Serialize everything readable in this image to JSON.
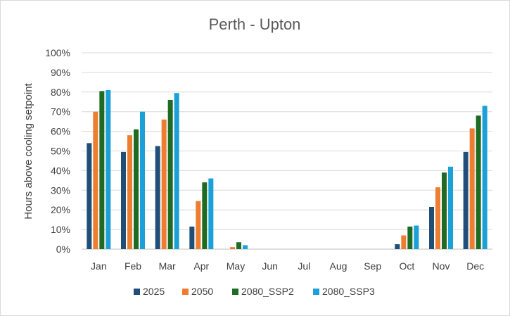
{
  "chart_data": {
    "type": "bar",
    "title": "Perth - Upton",
    "xlabel": "",
    "ylabel": "Hours above cooling setpoint",
    "ylim": [
      0,
      100
    ],
    "y_tick_labels": [
      "0%",
      "10%",
      "20%",
      "30%",
      "40%",
      "50%",
      "60%",
      "70%",
      "80%",
      "90%",
      "100%"
    ],
    "grid": true,
    "legend_position": "bottom",
    "categories": [
      "Jan",
      "Feb",
      "Mar",
      "Apr",
      "May",
      "Jun",
      "Jul",
      "Aug",
      "Sep",
      "Oct",
      "Nov",
      "Dec"
    ],
    "series": [
      {
        "name": "2025",
        "color": "#1f4e79",
        "values": [
          54,
          49.5,
          52.5,
          11.5,
          0,
          0,
          0,
          0,
          0,
          2.5,
          21.5,
          49.5
        ]
      },
      {
        "name": "2050",
        "color": "#ed7d31",
        "values": [
          70,
          58,
          66,
          24.5,
          1,
          0,
          0,
          0,
          0,
          7,
          31.5,
          61.5
        ]
      },
      {
        "name": "2080_SSP2",
        "color": "#1e6b24",
        "values": [
          80.5,
          61,
          76,
          34,
          3.5,
          0,
          0,
          0,
          0,
          11.5,
          39,
          68
        ]
      },
      {
        "name": "2080_SSP3",
        "color": "#1ca0d8",
        "values": [
          81,
          70,
          79.5,
          36,
          2,
          0,
          0,
          0,
          0,
          12,
          42,
          73
        ]
      }
    ]
  }
}
